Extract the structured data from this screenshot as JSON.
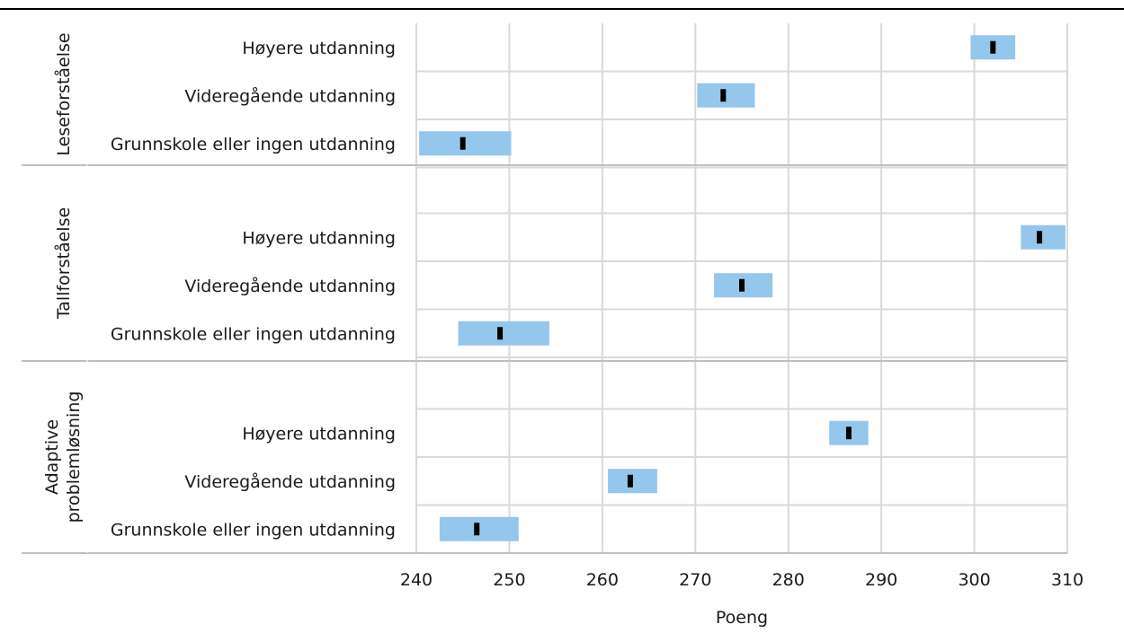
{
  "chart_data": {
    "type": "range-dot",
    "title": "",
    "xlabel": "Poeng",
    "ylabel": "",
    "xlim": [
      240,
      310
    ],
    "xticks": [
      240,
      250,
      260,
      270,
      280,
      290,
      300,
      310
    ],
    "grid": true,
    "colors": {
      "range": "#95c7ed",
      "point": "#000000",
      "grid": "#d9d9d9",
      "separator": "#bfbfbf",
      "topline": "#000000"
    },
    "groups": [
      {
        "name": "Leseforståelse",
        "categories": [
          {
            "label": "Høyere utdanning",
            "value": 302,
            "low": 299.6,
            "high": 304.4
          },
          {
            "label": "Videregående utdanning",
            "value": 273,
            "low": 270.2,
            "high": 276.4
          },
          {
            "label": "Grunnskole eller ingen utdanning",
            "value": 245,
            "low": 240.3,
            "high": 250.2
          }
        ]
      },
      {
        "name": "Tallforståelse",
        "categories": [
          {
            "label": "Høyere utdanning",
            "value": 307,
            "low": 305,
            "high": 309.8
          },
          {
            "label": "Videregående utdanning",
            "value": 275,
            "low": 272,
            "high": 278.3
          },
          {
            "label": "Grunnskole eller ingen utdanning",
            "value": 249,
            "low": 244.5,
            "high": 254.3
          }
        ]
      },
      {
        "name": "Adaptive problemløsning",
        "name_lines": [
          "Adaptive",
          "problemløsning"
        ],
        "categories": [
          {
            "label": "Høyere utdanning",
            "value": 286.5,
            "low": 284.4,
            "high": 288.6
          },
          {
            "label": "Videregående utdanning",
            "value": 263,
            "low": 260.6,
            "high": 265.9
          },
          {
            "label": "Grunnskole eller ingen utdanning",
            "value": 246.5,
            "low": 242.5,
            "high": 251
          }
        ]
      }
    ]
  }
}
